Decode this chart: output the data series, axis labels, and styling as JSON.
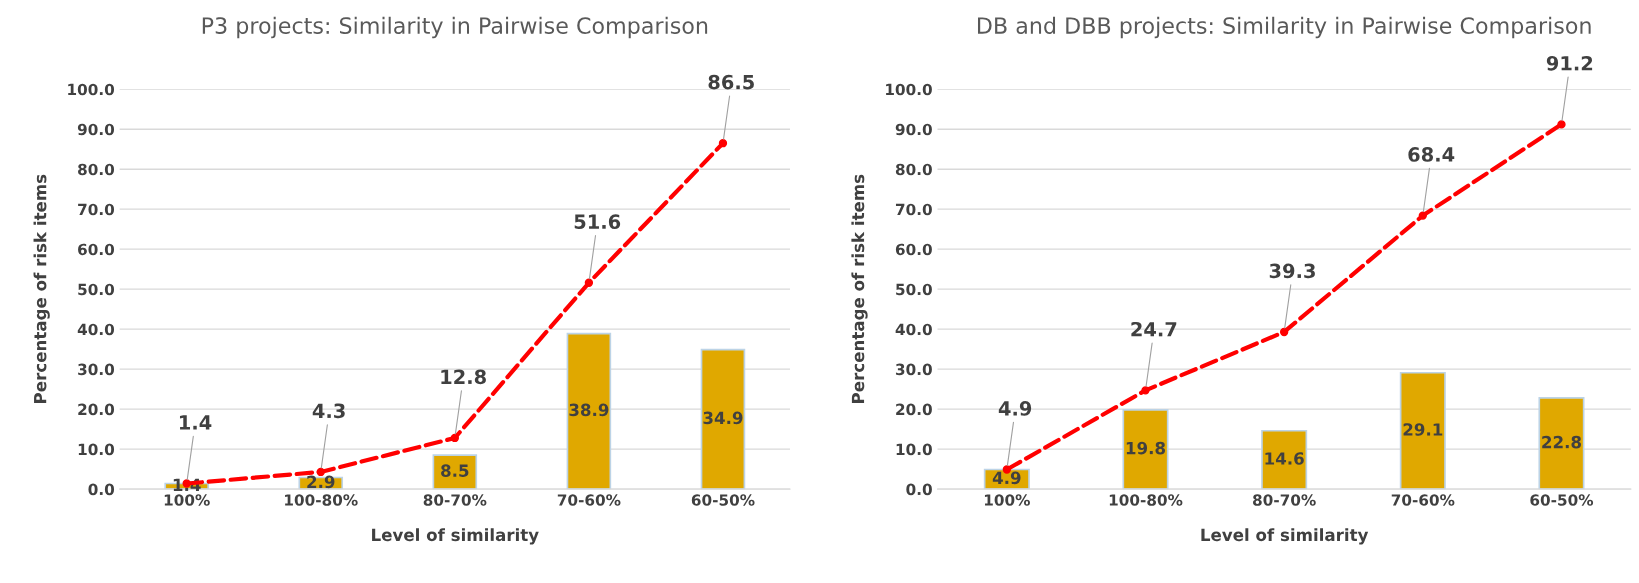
{
  "chart_data": [
    {
      "type": "bar",
      "title": "P3 projects: Similarity in Pairwise Comparison",
      "xlabel": "Level of similarity",
      "ylabel": "Percentage of risk items",
      "categories": [
        "100%",
        "100-80%",
        "80-70%",
        "70-60%",
        "60-50%"
      ],
      "series": [
        {
          "color": "#e0a800",
          "values": [
            1.4,
            2.9,
            8.5,
            38.9,
            34.9
          ]
        },
        {
          "type": "line",
          "color": "#ff0000",
          "values": [
            1.4,
            4.3,
            12.8,
            51.6,
            86.5
          ],
          "marker": "circle",
          "line_style": "dashed"
        }
      ],
      "ylim": [
        0,
        100
      ],
      "yticks": [
        {
          "value": 0,
          "label": "0.0"
        },
        {
          "value": 10,
          "label": "10.0"
        },
        {
          "value": 20,
          "label": "20.0"
        },
        {
          "value": 30,
          "label": "30.0"
        },
        {
          "value": 40,
          "label": "40.0"
        },
        {
          "value": 50,
          "label": "50.0"
        },
        {
          "value": 60,
          "label": "60.0"
        },
        {
          "value": 70,
          "label": "70.0"
        },
        {
          "value": 80,
          "label": "80.0"
        },
        {
          "value": 90,
          "label": "90.0"
        },
        {
          "value": 100,
          "label": "100.0"
        }
      ],
      "grid": "y",
      "data_labels": true
    },
    {
      "type": "bar",
      "title": "DB and DBB projects: Similarity in Pairwise Comparison",
      "xlabel": "Level of similarity",
      "ylabel": "Percentage of risk items",
      "categories": [
        "100%",
        "100-80%",
        "80-70%",
        "70-60%",
        "60-50%"
      ],
      "series": [
        {
          "color": "#e0a800",
          "values": [
            4.9,
            19.8,
            14.6,
            29.1,
            22.8
          ]
        },
        {
          "type": "line",
          "color": "#ff0000",
          "values": [
            4.9,
            24.7,
            39.3,
            68.4,
            91.2
          ],
          "marker": "circle",
          "line_style": "dashed"
        }
      ],
      "ylim": [
        0,
        100
      ],
      "yticks": [
        {
          "value": 0,
          "label": "0.0"
        },
        {
          "value": 10,
          "label": "10.0"
        },
        {
          "value": 20,
          "label": "20.0"
        },
        {
          "value": 30,
          "label": "30.0"
        },
        {
          "value": 40,
          "label": "40.0"
        },
        {
          "value": 50,
          "label": "50.0"
        },
        {
          "value": 60,
          "label": "60.0"
        },
        {
          "value": 70,
          "label": "70.0"
        },
        {
          "value": 80,
          "label": "80.0"
        },
        {
          "value": 90,
          "label": "90.0"
        },
        {
          "value": 100,
          "label": "100.0"
        }
      ],
      "grid": "y",
      "data_labels": true
    }
  ]
}
